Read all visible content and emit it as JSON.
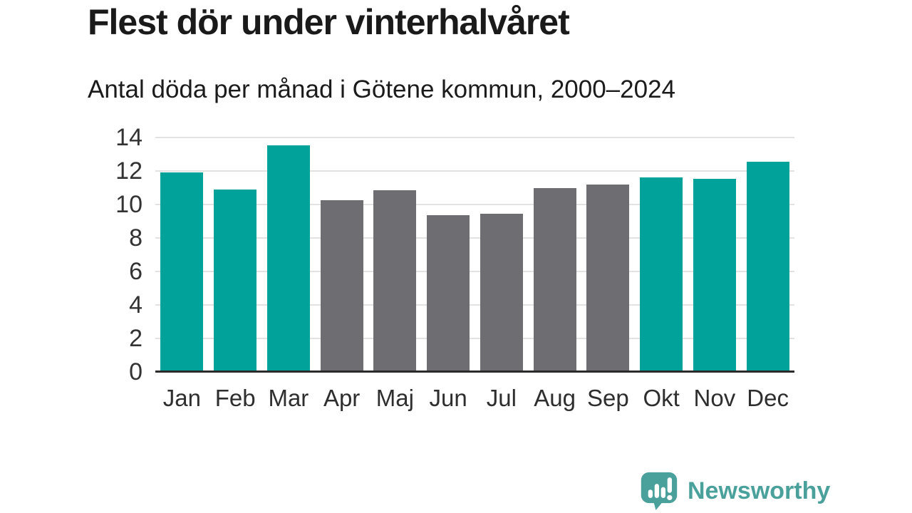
{
  "header": {
    "title": "Flest dör under vinterhalvåret",
    "subtitle": "Antal döda per månad i Götene kommun, 2000–2024"
  },
  "footer": {
    "brand": "Newsworthy",
    "logo_icon": "speech-bubble-bar-chart-exclamation-icon",
    "brand_color": "#4aa19b"
  },
  "chart_data": {
    "type": "bar",
    "title": "Flest dör under vinterhalvåret",
    "subtitle": "Antal döda per månad i Götene kommun, 2000–2024",
    "categories": [
      "Jan",
      "Feb",
      "Mar",
      "Apr",
      "Maj",
      "Jun",
      "Jul",
      "Aug",
      "Sep",
      "Okt",
      "Nov",
      "Dec"
    ],
    "values": [
      11.9,
      10.9,
      13.55,
      10.25,
      10.85,
      9.35,
      9.45,
      11.0,
      11.2,
      11.6,
      11.55,
      12.55
    ],
    "highlighted": [
      true,
      true,
      true,
      false,
      false,
      false,
      false,
      false,
      false,
      true,
      true,
      true
    ],
    "xlabel": "",
    "ylabel": "",
    "ylim": [
      0,
      14
    ],
    "yticks": [
      0,
      2,
      4,
      6,
      8,
      10,
      12,
      14
    ],
    "grid": "horizontal",
    "legend": "none",
    "colors": {
      "highlight": "#00a29a",
      "muted": "#6e6d72",
      "axis": "#2b2b2b",
      "gridline": "#e2e2e2",
      "tick_label": "#333333"
    }
  }
}
